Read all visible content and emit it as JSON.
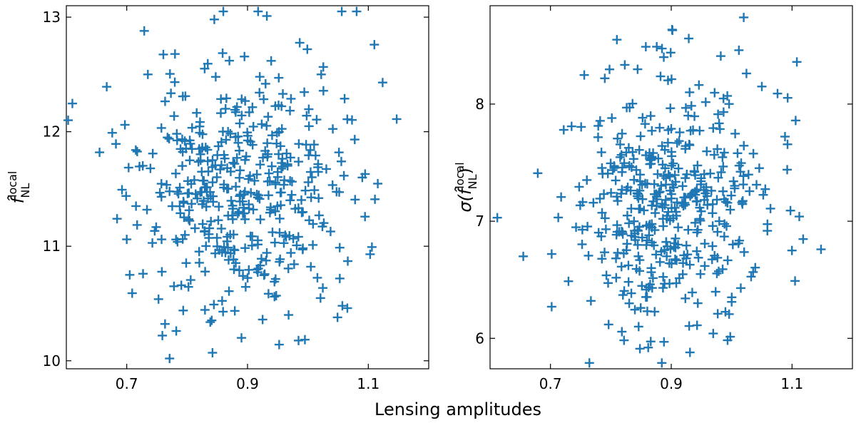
{
  "chart_data": {
    "type": "scatter",
    "xlabel": "Lensing amplitudes",
    "marker": "+",
    "marker_color": "#1f77b4",
    "panels": [
      {
        "name": "fnl-hat",
        "ylabel": "f̂",
        "ylabel_sup": "local",
        "ylabel_sub": "NL",
        "xlim": [
          0.6,
          1.2
        ],
        "ylim": [
          9.93,
          13.1
        ],
        "xticks": [
          0.7,
          0.9,
          1.1
        ],
        "xtick_labels": [
          "0.7",
          "0.9",
          "1.1"
        ],
        "yticks": [
          10,
          11,
          12,
          13
        ],
        "ytick_labels": [
          "10",
          "11",
          "12",
          "13"
        ],
        "seed": 11,
        "n": 450,
        "mean": [
          0.886,
          11.5
        ],
        "std": [
          0.082,
          0.52
        ],
        "points": [
          [
            0.603,
            12.1
          ],
          [
            0.655,
            11.82
          ],
          [
            0.676,
            11.99
          ],
          [
            0.697,
            12.06
          ],
          [
            0.715,
            11.84
          ],
          [
            0.729,
            12.88
          ],
          [
            0.735,
            12.5
          ],
          [
            0.845,
            12.98
          ],
          [
            0.932,
            13.01
          ],
          [
            0.842,
            10.07
          ],
          [
            0.89,
            10.2
          ],
          [
            0.782,
            10.26
          ],
          [
            0.759,
            10.22
          ],
          [
            0.925,
            10.36
          ],
          [
            0.968,
            10.4
          ],
          [
            1.11,
            12.76
          ],
          [
            1.147,
            12.11
          ],
          [
            1.111,
            11.41
          ],
          [
            1.103,
            10.93
          ],
          [
            1.09,
            11.6
          ],
          [
            1.066,
            10.87
          ],
          [
            1.057,
            10.48
          ],
          [
            0.684,
            11.24
          ],
          [
            0.705,
            10.75
          ],
          [
            0.709,
            10.59
          ],
          [
            0.727,
            10.76
          ],
          [
            0.87,
            12.62
          ],
          [
            0.999,
            12.72
          ],
          [
            1.022,
            12.5
          ],
          [
            0.7,
            11.06
          ]
        ]
      },
      {
        "name": "sigma-fnl",
        "ylabel": "σ(f̂",
        "ylabel_sup": "local",
        "ylabel_sub": "NL",
        "ylabel_close": ")",
        "xlim": [
          0.6,
          1.2
        ],
        "ylim": [
          5.74,
          8.84
        ],
        "xticks": [
          0.7,
          0.9,
          1.1
        ],
        "xtick_labels": [
          "0.7",
          "0.9",
          "1.1"
        ],
        "yticks": [
          6,
          7,
          8
        ],
        "ytick_labels": [
          "6",
          "7",
          "8"
        ],
        "seed": 29,
        "n": 450,
        "mean": [
          0.898,
          7.18
        ],
        "std": [
          0.075,
          0.5
        ],
        "points": [
          [
            0.612,
            7.03
          ],
          [
            0.655,
            6.7
          ],
          [
            0.679,
            7.41
          ],
          [
            0.702,
            6.27
          ],
          [
            0.702,
            6.72
          ],
          [
            0.888,
            5.97
          ],
          [
            0.931,
            5.88
          ],
          [
            0.902,
            8.63
          ],
          [
            1.02,
            8.74
          ],
          [
            0.81,
            8.55
          ],
          [
            0.929,
            8.56
          ],
          [
            1.108,
            8.36
          ],
          [
            1.148,
            6.76
          ],
          [
            1.112,
            7.04
          ],
          [
            1.105,
            6.49
          ],
          [
            1.106,
            7.86
          ],
          [
            1.092,
            7.44
          ],
          [
            1.076,
            8.09
          ],
          [
            1.05,
            8.15
          ],
          [
            1.012,
            8.46
          ],
          [
            0.982,
            8.41
          ],
          [
            0.722,
            7.78
          ],
          [
            0.735,
            7.81
          ],
          [
            0.79,
            8.22
          ],
          [
            0.876,
            8.49
          ],
          [
            0.944,
            6.3
          ],
          [
            0.977,
            6.21
          ],
          [
            0.846,
            6.1
          ],
          [
            0.82,
            6.37
          ],
          [
            0.767,
            6.32
          ]
        ]
      }
    ]
  }
}
